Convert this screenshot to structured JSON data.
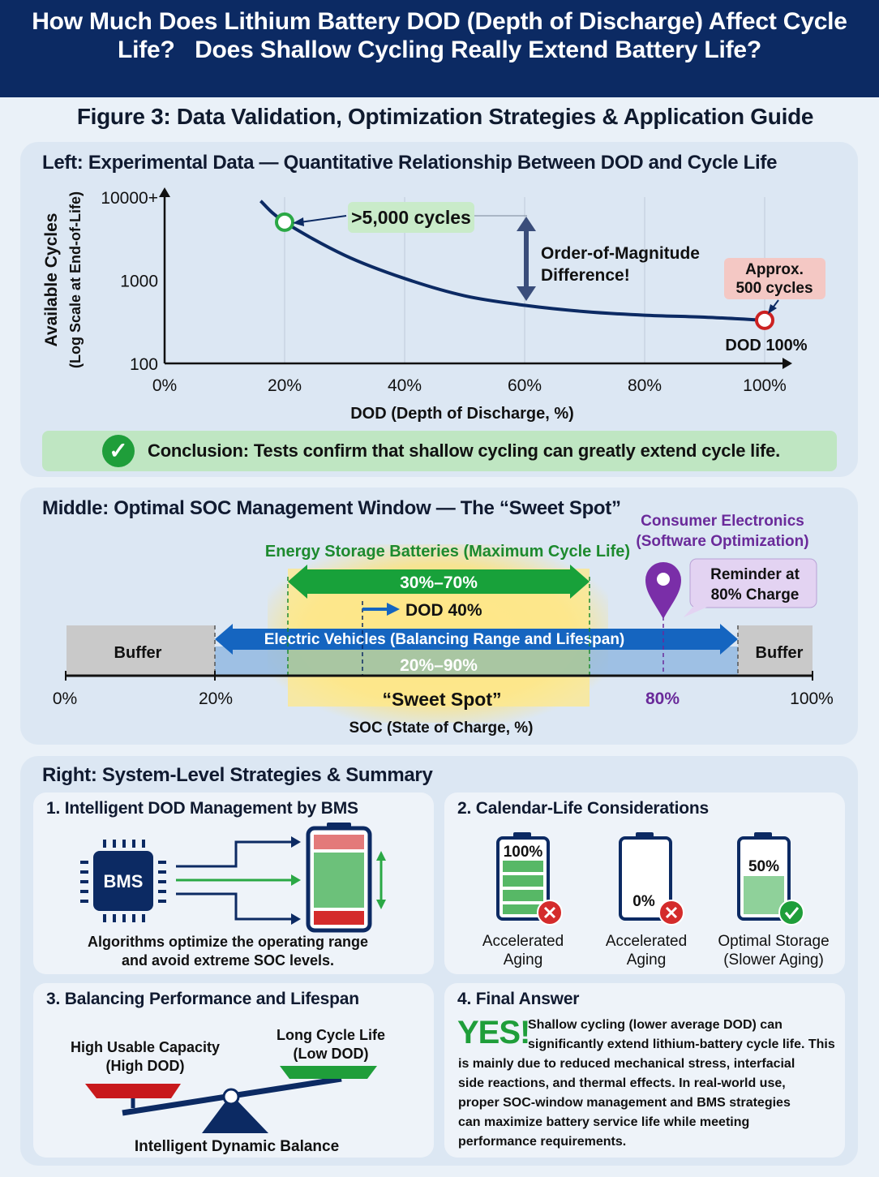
{
  "header": {
    "line1": "How Much Does Lithium Battery DOD (Depth of Discharge) Affect Cycle",
    "line2": "Life?   Does Shallow Cycling Really Extend Battery Life?"
  },
  "figure_title": "Figure 3: Data Validation, Optimization Strategies & Application Guide",
  "left_panel": {
    "title": "Left: Experimental Data — Quantitative Relationship Between DOD and Cycle Life",
    "ylabel_line1": "Available Cycles",
    "ylabel_line2": "(Log Scale at End-of-Life)",
    "xlabel": "DOD (Depth of Discharge, %)",
    "callout_5000": ">5,000 cycles",
    "magnitude_line1": "Order-of-Magnitude",
    "magnitude_line2": "Difference!",
    "approx_line1": "Approx.",
    "approx_line2": "500 cycles",
    "dod100_label": "DOD 100%",
    "conclusion_bold": "Conclusion:",
    "conclusion_text": " Tests confirm that shallow cycling can greatly extend cycle life.",
    "colors": {
      "curve": "#0c2a63",
      "good": "#2aa845",
      "bad": "#cc2222"
    }
  },
  "chart_data": {
    "type": "line",
    "x": [
      16,
      20,
      30,
      40,
      50,
      60,
      70,
      80,
      90,
      100
    ],
    "y": [
      9000,
      5000,
      2000,
      1050,
      650,
      500,
      420,
      380,
      360,
      330
    ],
    "x_ticks": [
      "0%",
      "20%",
      "40%",
      "60%",
      "80%",
      "100%"
    ],
    "y_ticks": [
      "100",
      "1000",
      "10000+"
    ],
    "xlim": [
      0,
      100
    ],
    "ylim": [
      100,
      10000
    ],
    "log_y": true,
    "grid": "vertical",
    "xlabel": "DOD (Depth of Discharge, %)",
    "ylabel": "Available Cycles (Log Scale at End-of-Life)"
  },
  "middle_panel": {
    "title": "Middle: Optimal SOC Management Window — The “Sweet Spot”",
    "energy_label": "Energy Storage Batteries (Maximum Cycle Life)",
    "energy_range": "30%–70%",
    "dod40": "DOD 40%",
    "ev_label": "Electric Vehicles (Balancing Range and Lifespan)",
    "ev_range": "20%–90%",
    "buffer_left": "Buffer",
    "buffer_right": "Buffer",
    "consumer_line1": "Consumer Electronics",
    "consumer_line2": "(Software Optimization)",
    "reminder_line1": "Reminder at",
    "reminder_line2": "80% Charge",
    "axis_0": "0%",
    "axis_20": "20%",
    "sweet_spot": "“Sweet Spot”",
    "axis_80": "80%",
    "axis_100": "100%",
    "xlabel": "SOC (State of Charge, %)"
  },
  "right_panel": {
    "title": "Right: System-Level Strategies & Summary",
    "card1": {
      "title": "1. Intelligent DOD Management by BMS",
      "chip": "BMS",
      "caption_line1": "Algorithms optimize the operating range",
      "caption_line2": "and avoid extreme SOC levels."
    },
    "card2": {
      "title": "2. Calendar-Life Considerations",
      "batteries": [
        {
          "level": "100%",
          "label_line1": "Accelerated",
          "label_line2": "Aging",
          "status": "bad"
        },
        {
          "level": "0%",
          "label_line1": "Accelerated",
          "label_line2": "Aging",
          "status": "bad"
        },
        {
          "level": "50%",
          "label_line1": "Optimal Storage",
          "label_line2": "(Slower Aging)",
          "status": "good"
        }
      ]
    },
    "card3": {
      "title": "3. Balancing Performance and Lifespan",
      "left_line1": "High Usable Capacity",
      "left_line2": "(High DOD)",
      "right_line1": "Long Cycle Life",
      "right_line2": "(Low DOD)",
      "caption": "Intelligent Dynamic Balance"
    },
    "card4": {
      "title": "4. Final Answer",
      "yes": "YES!",
      "lines": [
        "Shallow cycling (lower average DOD) can",
        "significantly extend lithium-battery cycle life. This",
        "is mainly due to reduced mechanical stress, interfacial",
        "side reactions, and thermal effects. In real-world use,",
        "proper SOC-window management and BMS strategies",
        "can maximize battery service life while meeting",
        "performance requirements."
      ]
    }
  }
}
